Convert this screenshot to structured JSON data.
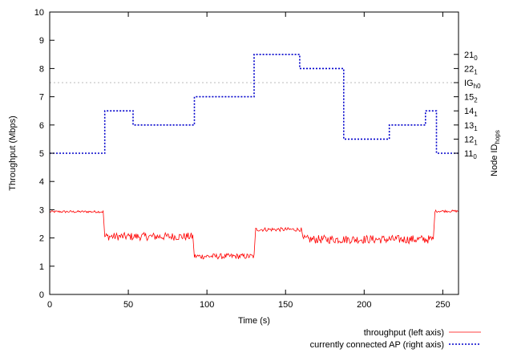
{
  "chart_data": {
    "type": "line",
    "title": "",
    "xlabel": "Time (s)",
    "ylabel": "Throughput (Mbps)",
    "y2label": "Node ID",
    "y2label_sub": "hops",
    "xlim": [
      0,
      260
    ],
    "ylim": [
      0,
      10
    ],
    "x_ticks": [
      0,
      50,
      100,
      150,
      200,
      250
    ],
    "y_ticks": [
      0,
      1,
      2,
      3,
      4,
      5,
      6,
      7,
      8,
      9,
      10
    ],
    "grid": false,
    "legend_position": "bottom-right, below plot",
    "reference_line": {
      "y": 7.5,
      "style": "dotted",
      "color": "#bbbbbb"
    },
    "right_ticks": [
      {
        "main": "21",
        "sub": "0",
        "y": 8.5
      },
      {
        "main": "22",
        "sub": "1",
        "y": 8.0
      },
      {
        "main": "IG",
        "sub": "h0",
        "y": 7.5
      },
      {
        "main": "15",
        "sub": "2",
        "y": 7.0
      },
      {
        "main": "14",
        "sub": "1",
        "y": 6.5
      },
      {
        "main": "13",
        "sub": "1",
        "y": 6.0
      },
      {
        "main": "12",
        "sub": "1",
        "y": 5.5
      },
      {
        "main": "11",
        "sub": "0",
        "y": 5.0
      }
    ],
    "series": [
      {
        "name": "throughput (left axis)",
        "color": "#ff0000",
        "style": "solid",
        "segments": [
          {
            "x0": 0,
            "x1": 34,
            "level": 2.93,
            "jitter": 0.04
          },
          {
            "x0": 35,
            "x1": 91,
            "level": 2.05,
            "jitter": 0.14
          },
          {
            "x0": 92,
            "x1": 130,
            "level": 1.35,
            "jitter": 0.1
          },
          {
            "x0": 131,
            "x1": 160,
            "level": 2.3,
            "jitter": 0.07
          },
          {
            "x0": 161,
            "x1": 244,
            "level": 1.95,
            "jitter": 0.15
          },
          {
            "x0": 245,
            "x1": 260,
            "level": 2.95,
            "jitter": 0.04
          }
        ]
      },
      {
        "name": "currently connected AP (right axis)",
        "color": "#0000cc",
        "style": "dotted",
        "steps": [
          {
            "x0": 0,
            "x1": 35,
            "y": 5.0
          },
          {
            "x0": 35,
            "x1": 53,
            "y": 6.5
          },
          {
            "x0": 53,
            "x1": 92,
            "y": 6.0
          },
          {
            "x0": 92,
            "x1": 130,
            "y": 7.0
          },
          {
            "x0": 130,
            "x1": 159,
            "y": 8.5
          },
          {
            "x0": 159,
            "x1": 187,
            "y": 8.0
          },
          {
            "x0": 187,
            "x1": 216,
            "y": 5.5
          },
          {
            "x0": 216,
            "x1": 239,
            "y": 6.0
          },
          {
            "x0": 239,
            "x1": 246,
            "y": 6.5
          },
          {
            "x0": 246,
            "x1": 260,
            "y": 5.0
          }
        ]
      }
    ]
  }
}
